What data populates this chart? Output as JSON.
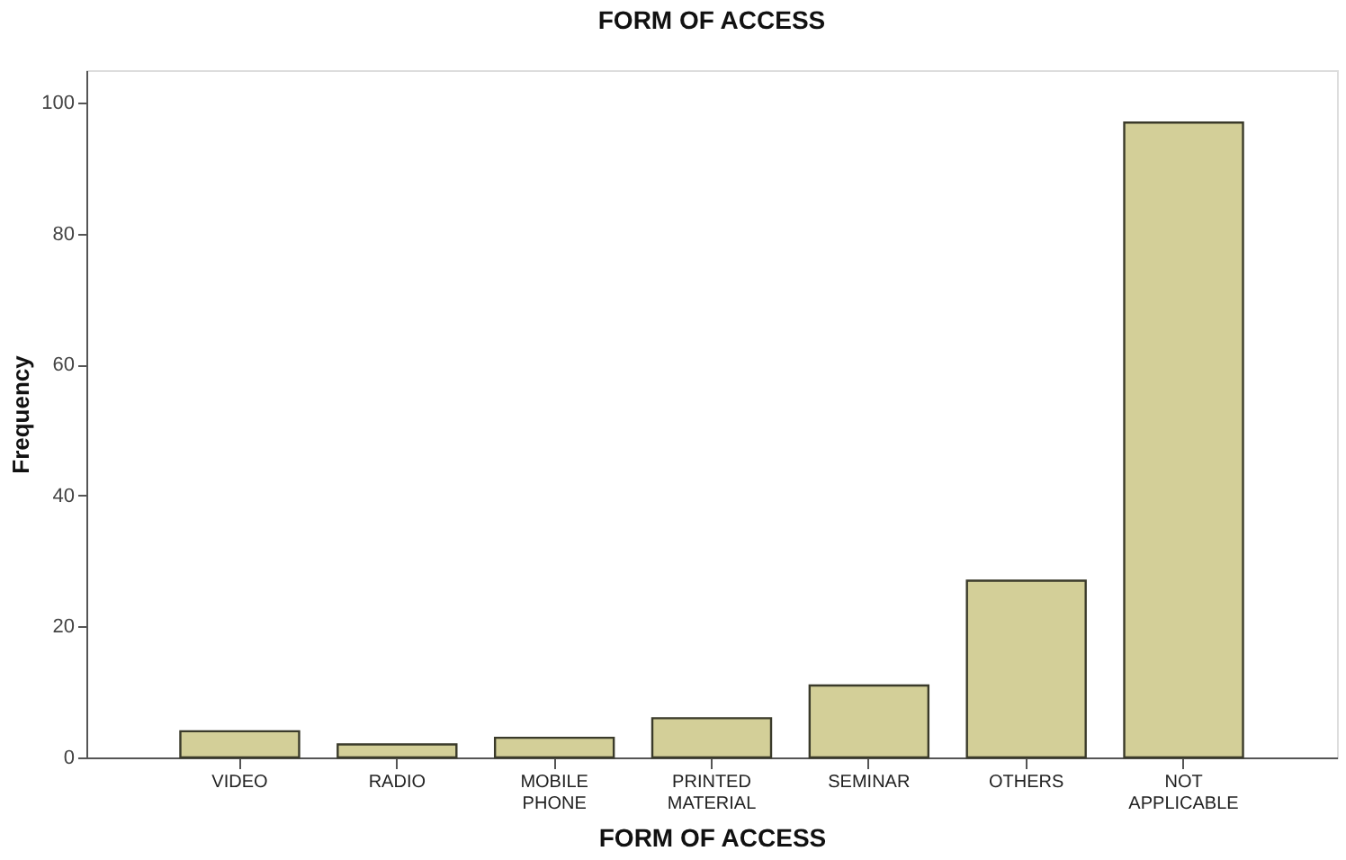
{
  "chart_data": {
    "type": "bar",
    "title": "FORM OF ACCESS",
    "xlabel": "FORM OF ACCESS",
    "ylabel": "Frequency",
    "categories": [
      "VIDEO",
      "RADIO",
      "MOBILE PHONE",
      "PRINTED MATERIAL",
      "SEMINAR",
      "OTHERS",
      "NOT APPLICABLE"
    ],
    "values": [
      4,
      2,
      3,
      6,
      11,
      27,
      97
    ],
    "color": "#d3cf98",
    "ylim": [
      0,
      105
    ],
    "yticks": [
      0,
      20,
      40,
      60,
      80,
      100
    ],
    "grid": false
  }
}
